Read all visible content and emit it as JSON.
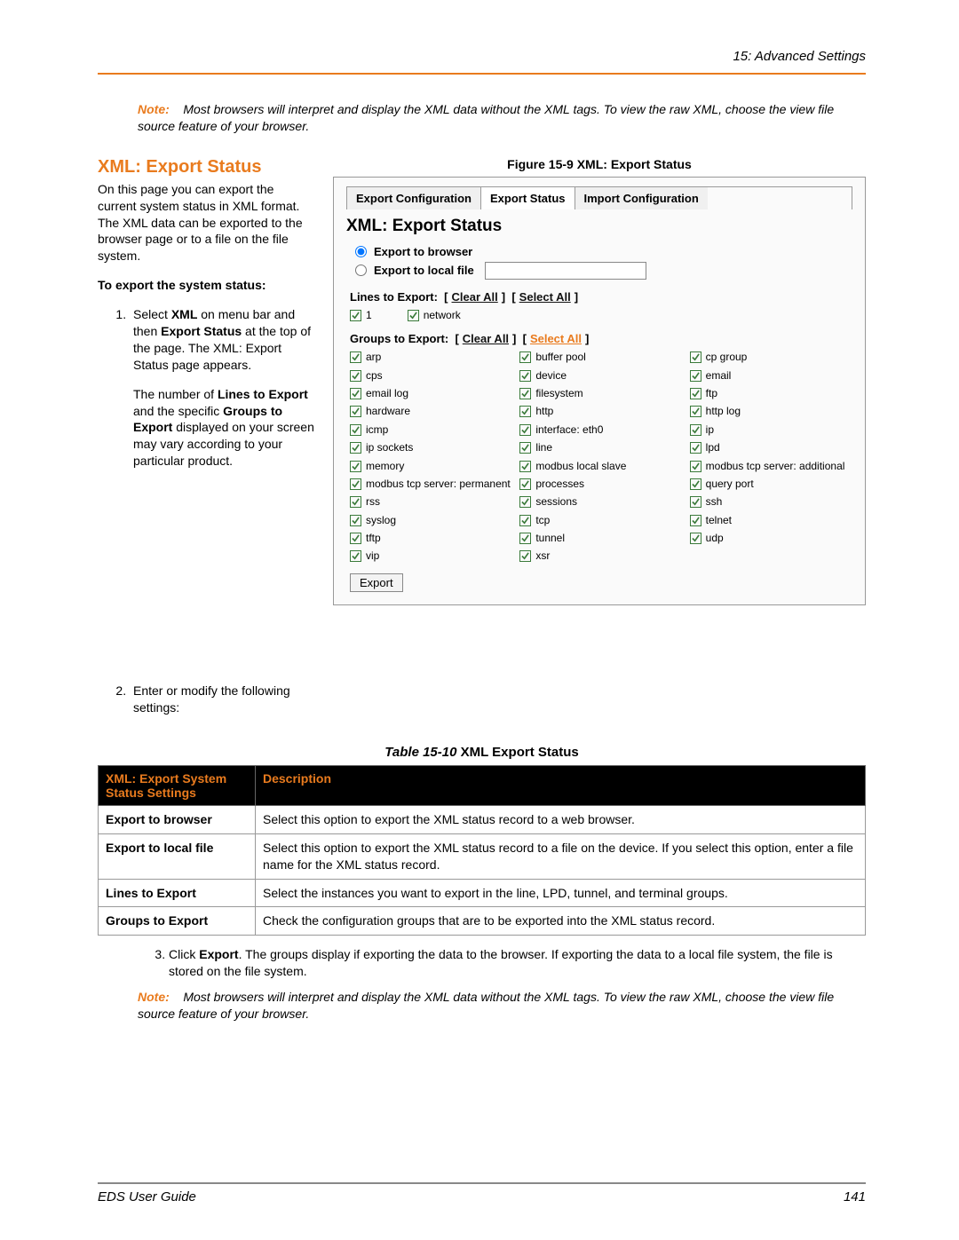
{
  "header": {
    "chapter": "15: Advanced Settings"
  },
  "note1": {
    "label": "Note:",
    "text": "Most browsers will interpret and display the XML data without the XML tags. To view the raw XML, choose the view file source feature of your browser."
  },
  "section_title": "XML: Export Status",
  "intro_para": "On this page you can export the current system status in XML format. The XML data can be exported to the browser page or to a file on the file system.",
  "sub_heading": "To export the system status:",
  "step1_a": "Select ",
  "step1_b": "XML",
  "step1_c": " on menu bar and then ",
  "step1_d": "Export Status",
  "step1_e": " at the top of the page. The XML: Export Status page appears.",
  "step1_sub_a": "The number of ",
  "step1_sub_b": "Lines to Export",
  "step1_sub_c": " and the specific ",
  "step1_sub_d": "Groups to Export",
  "step1_sub_e": " displayed on your screen may vary according to your particular product.",
  "step2": "Enter or modify the following settings:",
  "figure": {
    "caption": "Figure 15-9  XML: Export Status",
    "tabs": [
      "Export Configuration",
      "Export Status",
      "Import Configuration"
    ],
    "active_tab_index": 1,
    "title": "XML: Export Status",
    "radio1": "Export to browser",
    "radio2": "Export to local file",
    "lines_label": "Lines to Export:",
    "clear_all": "Clear All",
    "select_all": "Select All",
    "lines": [
      "1",
      "network"
    ],
    "groups_label": "Groups to Export:",
    "groups": [
      "arp",
      "buffer pool",
      "cp group",
      "cps",
      "device",
      "email",
      "email log",
      "filesystem",
      "ftp",
      "hardware",
      "http",
      "http log",
      "icmp",
      "interface: eth0",
      "ip",
      "ip sockets",
      "line",
      "lpd",
      "memory",
      "modbus local slave",
      "modbus tcp server: additional",
      "modbus tcp server: permanent",
      "processes",
      "query port",
      "rss",
      "sessions",
      "ssh",
      "syslog",
      "tcp",
      "telnet",
      "tftp",
      "tunnel",
      "udp",
      "vip",
      "xsr"
    ],
    "export_button": "Export"
  },
  "table": {
    "caption_prefix": "Table 15-10",
    "caption_rest": "  XML Export Status",
    "header1": "XML: Export System Status Settings",
    "header2": "Description",
    "rows": [
      {
        "k": "Export to browser",
        "v": "Select this option to export the XML status record to a web browser."
      },
      {
        "k": "Export to local file",
        "v": "Select this option to export the XML status record to a file on the device. If you select this option, enter a file name for the XML status record."
      },
      {
        "k": "Lines to Export",
        "v": "Select the instances you want to export in the line, LPD,  tunnel, and terminal groups."
      },
      {
        "k": "Groups to Export",
        "v": "Check the configuration groups that are to be exported into the XML status record."
      }
    ]
  },
  "step3_a": "Click ",
  "step3_b": "Export",
  "step3_c": ". The groups display if exporting the data to the browser. If exporting the data to a local file system, the file is stored on the file system.",
  "note2": {
    "label": "Note:",
    "text": "Most browsers will interpret and display the XML data without the XML tags. To view the raw XML, choose the view file source feature of your browser."
  },
  "footer": {
    "guide": "EDS User Guide",
    "page": "141"
  },
  "colors": {
    "accent": "#e97b1e",
    "check_green": "#3a7a3a"
  }
}
